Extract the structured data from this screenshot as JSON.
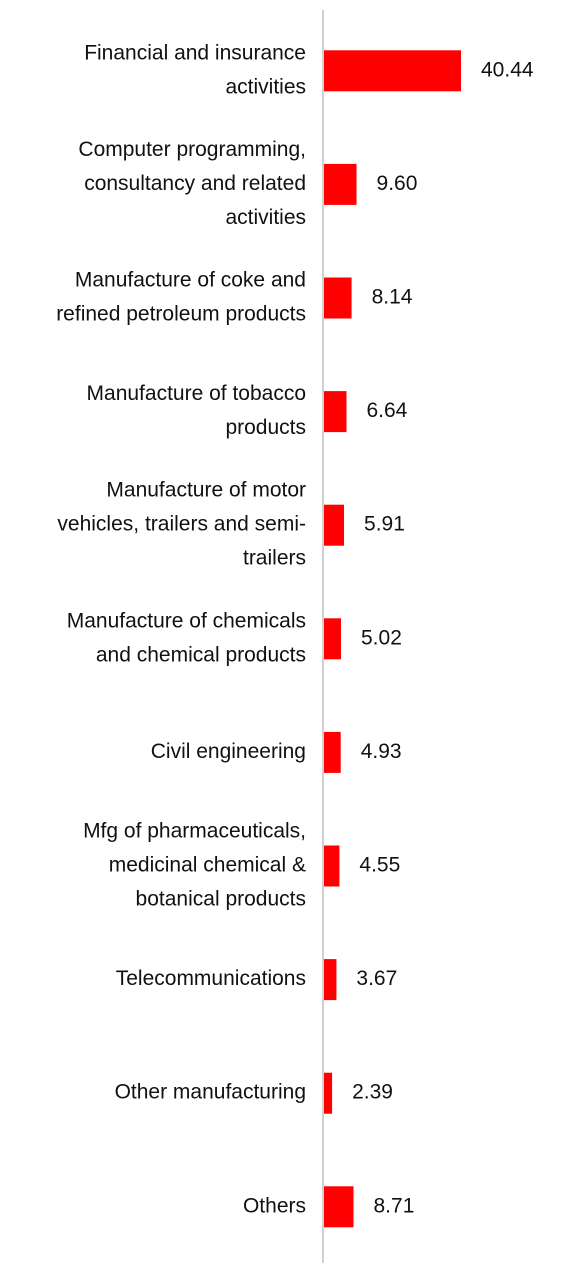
{
  "chart_data": {
    "type": "bar",
    "orientation": "horizontal",
    "categories": [
      [
        "Financial and insurance",
        "activities"
      ],
      [
        "Computer programming,",
        "consultancy and related",
        "activities"
      ],
      [
        "Manufacture of coke and",
        "refined petroleum products"
      ],
      [
        "Manufacture of tobacco",
        "products"
      ],
      [
        "Manufacture of motor",
        "vehicles, trailers and semi-",
        "trailers"
      ],
      [
        "Manufacture of chemicals",
        "and chemical products"
      ],
      [
        "Civil engineering"
      ],
      [
        "Mfg of pharmaceuticals,",
        "medicinal chemical &",
        "botanical products"
      ],
      [
        "Telecommunications"
      ],
      [
        "Other manufacturing"
      ],
      [
        "Others"
      ]
    ],
    "values": [
      40.44,
      9.6,
      8.14,
      6.64,
      5.91,
      5.02,
      4.93,
      4.55,
      3.67,
      2.39,
      8.71
    ],
    "value_labels": [
      "40.44",
      "9.60",
      "8.14",
      "6.64",
      "5.91",
      "5.02",
      "4.93",
      "4.55",
      "3.67",
      "2.39",
      "8.71"
    ],
    "xlim": [
      0,
      40.44
    ],
    "bar_color": "#ff0000",
    "axis_color": "#d0d0d0",
    "grid": false,
    "legend": "none"
  }
}
